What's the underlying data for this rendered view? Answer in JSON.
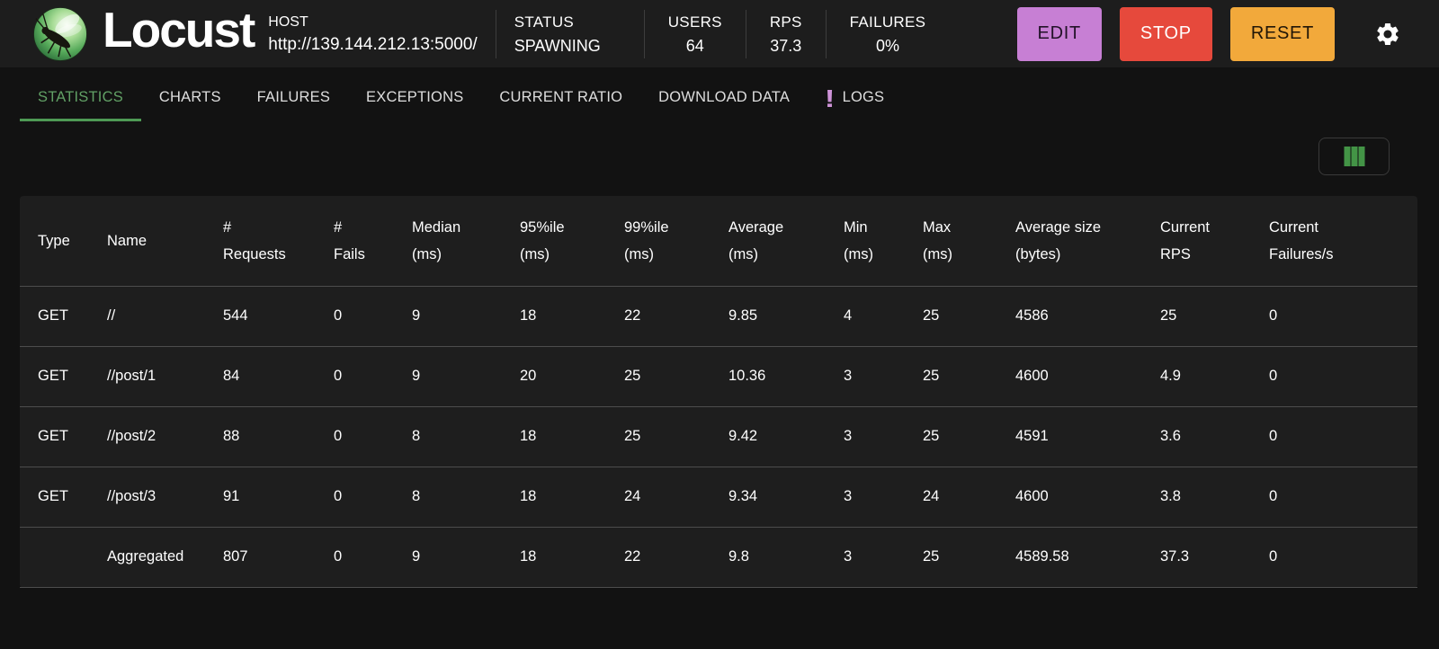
{
  "header": {
    "logo_text": "Locust",
    "host": {
      "label": "HOST",
      "url": "http://139.144.212.13:5000/"
    },
    "stats": [
      {
        "label": "STATUS",
        "value": "SPAWNING"
      },
      {
        "label": "USERS",
        "value": "64"
      },
      {
        "label": "RPS",
        "value": "37.3"
      },
      {
        "label": "FAILURES",
        "value": "0%"
      }
    ],
    "buttons": {
      "edit": "EDIT",
      "stop": "STOP",
      "reset": "RESET"
    }
  },
  "tabs": {
    "items": [
      {
        "label": "STATISTICS",
        "active": true
      },
      {
        "label": "CHARTS",
        "active": false
      },
      {
        "label": "FAILURES",
        "active": false
      },
      {
        "label": "EXCEPTIONS",
        "active": false
      },
      {
        "label": "CURRENT RATIO",
        "active": false
      },
      {
        "label": "DOWNLOAD DATA",
        "active": false
      },
      {
        "label": "LOGS",
        "active": false,
        "icon": "exclamation-icon",
        "icon_glyph": "!"
      }
    ]
  },
  "table": {
    "columns": [
      {
        "line1": "Type",
        "line2": ""
      },
      {
        "line1": "Name",
        "line2": ""
      },
      {
        "line1": "#",
        "line2": "Requests"
      },
      {
        "line1": "#",
        "line2": "Fails"
      },
      {
        "line1": "Median",
        "line2": "(ms)"
      },
      {
        "line1": "95%ile",
        "line2": "(ms)"
      },
      {
        "line1": "99%ile",
        "line2": "(ms)"
      },
      {
        "line1": "Average",
        "line2": "(ms)"
      },
      {
        "line1": "Min",
        "line2": "(ms)"
      },
      {
        "line1": "Max",
        "line2": "(ms)"
      },
      {
        "line1": "Average size",
        "line2": "(bytes)"
      },
      {
        "line1": "Current",
        "line2": "RPS"
      },
      {
        "line1": "Current",
        "line2": "Failures/s"
      }
    ],
    "rows": [
      [
        "GET",
        "//",
        "544",
        "0",
        "9",
        "18",
        "22",
        "9.85",
        "4",
        "25",
        "4586",
        "25",
        "0"
      ],
      [
        "GET",
        "//post/1",
        "84",
        "0",
        "9",
        "20",
        "25",
        "10.36",
        "3",
        "25",
        "4600",
        "4.9",
        "0"
      ],
      [
        "GET",
        "//post/2",
        "88",
        "0",
        "8",
        "18",
        "25",
        "9.42",
        "3",
        "25",
        "4591",
        "3.6",
        "0"
      ],
      [
        "GET",
        "//post/3",
        "91",
        "0",
        "8",
        "18",
        "24",
        "9.34",
        "3",
        "24",
        "4600",
        "3.8",
        "0"
      ]
    ],
    "aggregated_row": [
      "",
      "Aggregated",
      "807",
      "0",
      "9",
      "18",
      "22",
      "9.8",
      "3",
      "25",
      "4589.58",
      "37.3",
      "0"
    ]
  },
  "colors": {
    "page_bg": "#121212",
    "header_bg": "#1d1d1d",
    "panel_bg": "#1e1e1e",
    "row_divider": "#4d4d4d",
    "active_tab_green": "#61a065",
    "tab_underline_green": "#4e9a55",
    "column_icon_green": "#439446",
    "logs_badge_purple": "#ce93d8",
    "edit_button_bg": "#c77fd4",
    "stop_button_bg": "#e6493c",
    "reset_button_bg": "#f2a93b"
  }
}
